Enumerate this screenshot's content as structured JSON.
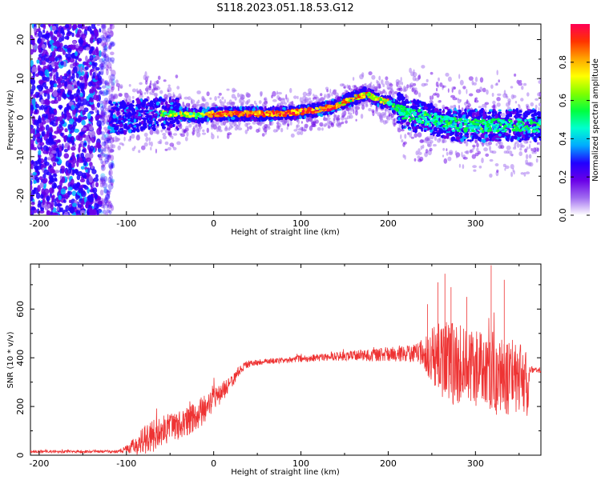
{
  "title": "S118.2023.051.18.53.G12",
  "chart_data": [
    {
      "type": "heatmap",
      "xlabel": "Height of straight line (km)",
      "ylabel": "Frequency (Hz)",
      "xlim": [
        -210,
        375
      ],
      "ylim": [
        -25,
        24
      ],
      "xticks": [
        -200,
        -100,
        0,
        100,
        200,
        300
      ],
      "yticks": [
        -20,
        -10,
        0,
        10,
        20
      ],
      "ridge": {
        "x": [
          -120,
          -100,
          -80,
          -60,
          -40,
          -20,
          0,
          20,
          40,
          60,
          80,
          100,
          120,
          140,
          160,
          175,
          190,
          200,
          220,
          240,
          260,
          280,
          300,
          320,
          340,
          360,
          375
        ],
        "y": [
          0,
          0,
          1,
          1,
          1,
          0.5,
          1,
          1,
          1,
          1,
          1,
          1.5,
          2,
          3,
          5,
          6,
          4.5,
          4,
          1,
          0,
          -1,
          -2,
          -2,
          -2,
          -2,
          -2,
          -2
        ]
      },
      "colorbar": {
        "label": "Normalized spectral amplitude",
        "range": [
          0,
          1
        ],
        "ticks": [
          0.0,
          0.2,
          0.4,
          0.6,
          0.8
        ],
        "colors": [
          "#ffffff",
          "#a06cf0",
          "#6a00e8",
          "#2200ff",
          "#00aaff",
          "#00ffd0",
          "#00ff40",
          "#80ff00",
          "#ffff00",
          "#ffa500",
          "#ff3300",
          "#ff0055"
        ]
      }
    },
    {
      "type": "line",
      "xlabel": "Height of straight line (km)",
      "ylabel": "SNR (10 * v/v)",
      "xlim": [
        -210,
        375
      ],
      "ylim": [
        0,
        785
      ],
      "xticks": [
        -200,
        -100,
        0,
        100,
        200,
        300
      ],
      "yticks": [
        0,
        200,
        400,
        600
      ],
      "series": [
        {
          "color": "#ee3333",
          "x": [
            -210,
            -150,
            -110,
            -100,
            -90,
            -80,
            -70,
            -60,
            -50,
            -40,
            -30,
            -20,
            -10,
            0,
            10,
            20,
            30,
            40,
            60,
            80,
            100,
            120,
            140,
            160,
            180,
            200,
            220,
            240,
            250,
            260,
            270,
            280,
            290,
            300,
            310,
            320,
            330,
            340,
            350,
            360,
            362,
            370,
            375
          ],
          "y": [
            15,
            15,
            15,
            25,
            40,
            60,
            80,
            100,
            110,
            125,
            140,
            160,
            190,
            230,
            260,
            300,
            350,
            375,
            385,
            390,
            395,
            400,
            405,
            410,
            410,
            415,
            420,
            420,
            400,
            390,
            380,
            370,
            360,
            350,
            340,
            340,
            330,
            320,
            310,
            300,
            350,
            350,
            350
          ],
          "amplitude": [
            6,
            6,
            6,
            15,
            40,
            60,
            70,
            60,
            60,
            60,
            60,
            60,
            60,
            50,
            40,
            30,
            20,
            15,
            12,
            12,
            15,
            15,
            18,
            20,
            25,
            30,
            35,
            50,
            120,
            160,
            170,
            170,
            160,
            160,
            160,
            170,
            170,
            160,
            150,
            140,
            15,
            12,
            12
          ],
          "spikes": [
            [
              265,
              745
            ],
            [
              272,
              690
            ],
            [
              318,
              780
            ],
            [
              333,
              720
            ],
            [
              257,
              710
            ],
            [
              290,
              650
            ],
            [
              245,
              620
            ]
          ]
        }
      ]
    }
  ]
}
